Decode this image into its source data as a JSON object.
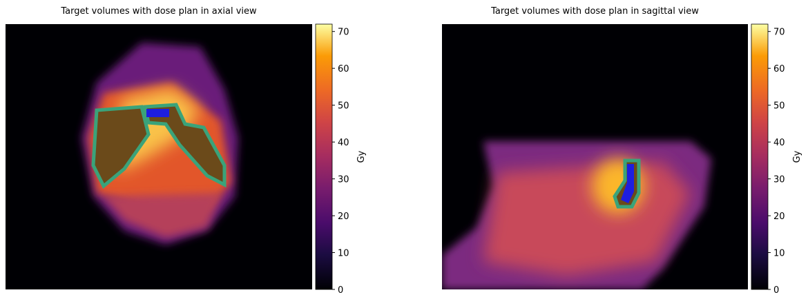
{
  "chart_data": [
    {
      "type": "heatmap",
      "title": "Target volumes with dose plan in axial view",
      "colorbar": {
        "label": "Gy",
        "lim": [
          0,
          72
        ],
        "ticks": [
          0,
          10,
          20,
          30,
          40,
          50,
          60,
          70
        ]
      }
    },
    {
      "type": "heatmap",
      "title": "Target volumes with dose plan in sagittal view",
      "colorbar": {
        "label": "Gy",
        "lim": [
          0,
          72
        ],
        "ticks": [
          0,
          10,
          20,
          30,
          40,
          50,
          60,
          70
        ]
      }
    }
  ]
}
